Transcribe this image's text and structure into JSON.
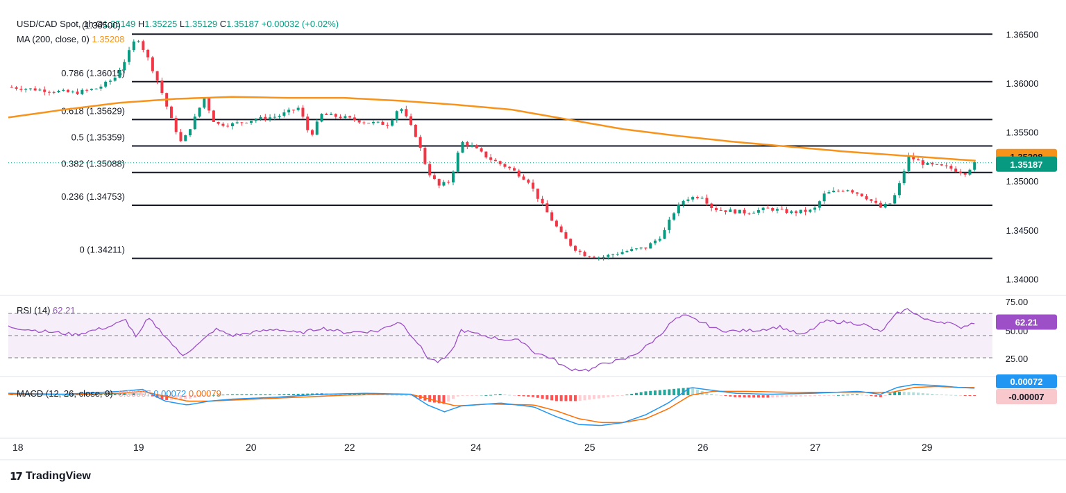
{
  "header": {
    "symbol": "USD/CAD Spot",
    "timeframe": "1h",
    "o_label": "O",
    "o_value": "1.35149",
    "h_label": "H",
    "h_value": "1.35225",
    "l_label": "L",
    "l_value": "1.35129",
    "c_label": "C",
    "c_value": "1.35187",
    "change": "+0.00032 (+0.02%)",
    "high_annotation": "(1.36500)"
  },
  "ma": {
    "label": "MA (200, close, 0)",
    "value": "1.35208",
    "color": "#f7931a"
  },
  "rsi": {
    "label": "RSI (14)",
    "value": "62.21",
    "color": "#9c4fc7",
    "ticks": [
      "75.00",
      "50.00",
      "25.00"
    ]
  },
  "macd": {
    "label": "MACD (12, 26, close, 9)",
    "hist_value": "-0.00007",
    "macd_value": "0.00072",
    "signal_value": "0.00079",
    "macd_color": "#2196f3",
    "signal_color": "#ff6d00"
  },
  "price_tags": {
    "ma": "1.35208",
    "last": "1.35187",
    "rsi": "62.21",
    "macd": "0.00072",
    "hist": "-0.00007"
  },
  "branding": {
    "name": "TradingView"
  },
  "colors": {
    "up": "#089981",
    "down": "#f23645",
    "fib": "#131722",
    "ma": "#f7931a"
  },
  "chart_data": {
    "type": "candlestick",
    "title": "USD/CAD Spot, 1h",
    "y_axis_ticks": [
      "1.36500",
      "1.36000",
      "1.35500",
      "1.35000",
      "1.34500",
      "1.34000"
    ],
    "x_axis_ticks": [
      "18",
      "19",
      "20",
      "22",
      "24",
      "25",
      "26",
      "27",
      "29"
    ],
    "fib_levels": [
      {
        "label": "1 (1.36500)",
        "value": 1.365
      },
      {
        "label": "0.786 (1.36015)",
        "value": 1.36015
      },
      {
        "label": "0.618 (1.35629)",
        "value": 1.35629
      },
      {
        "label": "0.5 (1.35359)",
        "value": 1.35359
      },
      {
        "label": "0.382 (1.35088)",
        "value": 1.35088
      },
      {
        "label": "0.236 (1.34753)",
        "value": 1.34753
      },
      {
        "label": "0 (1.34211)",
        "value": 1.34211
      }
    ],
    "last_price": 1.35187,
    "ma_path": [
      [
        0,
        1.3565
      ],
      [
        5,
        1.3573
      ],
      [
        10,
        1.358
      ],
      [
        15,
        1.3584
      ],
      [
        20,
        1.3586
      ],
      [
        25,
        1.3585
      ],
      [
        30,
        1.3585
      ],
      [
        35,
        1.3582
      ],
      [
        40,
        1.3578
      ],
      [
        45,
        1.3573
      ],
      [
        50,
        1.3563
      ],
      [
        55,
        1.3553
      ],
      [
        60,
        1.3546
      ],
      [
        65,
        1.354
      ],
      [
        70,
        1.3535
      ],
      [
        75,
        1.353
      ],
      [
        80,
        1.3526
      ],
      [
        85,
        1.3522
      ],
      [
        86.5,
        1.35208
      ]
    ],
    "price_path": [
      [
        0,
        1.3596
      ],
      [
        3,
        1.3593
      ],
      [
        6,
        1.359
      ],
      [
        8,
        1.3595
      ],
      [
        9.5,
        1.3605
      ],
      [
        10.5,
        1.3625
      ],
      [
        11.5,
        1.3648
      ],
      [
        12.5,
        1.3625
      ],
      [
        13.5,
        1.3598
      ],
      [
        14.5,
        1.3565
      ],
      [
        15.5,
        1.3538
      ],
      [
        16.5,
        1.356
      ],
      [
        17.5,
        1.3585
      ],
      [
        18.5,
        1.3558
      ],
      [
        20,
        1.3558
      ],
      [
        22,
        1.3563
      ],
      [
        24,
        1.3566
      ],
      [
        26,
        1.3575
      ],
      [
        27,
        1.3545
      ],
      [
        28,
        1.3568
      ],
      [
        30,
        1.3565
      ],
      [
        32,
        1.356
      ],
      [
        34,
        1.3558
      ],
      [
        35,
        1.3577
      ],
      [
        36.5,
        1.3545
      ],
      [
        37.5,
        1.351
      ],
      [
        38.5,
        1.3495
      ],
      [
        39.5,
        1.35
      ],
      [
        40.5,
        1.354
      ],
      [
        41.5,
        1.3535
      ],
      [
        43,
        1.3523
      ],
      [
        45,
        1.3512
      ],
      [
        46.5,
        1.35
      ],
      [
        47.5,
        1.348
      ],
      [
        48.5,
        1.3462
      ],
      [
        49.5,
        1.3445
      ],
      [
        50.5,
        1.3432
      ],
      [
        51.5,
        1.3425
      ],
      [
        53,
        1.3422
      ],
      [
        55,
        1.3428
      ],
      [
        57,
        1.3432
      ],
      [
        58.5,
        1.3445
      ],
      [
        59.5,
        1.3468
      ],
      [
        60.5,
        1.3482
      ],
      [
        62,
        1.3485
      ],
      [
        63,
        1.3472
      ],
      [
        64,
        1.347
      ],
      [
        66,
        1.3468
      ],
      [
        68,
        1.3472
      ],
      [
        70,
        1.3468
      ],
      [
        72,
        1.347
      ],
      [
        73,
        1.3487
      ],
      [
        75,
        1.3492
      ],
      [
        76.5,
        1.3485
      ],
      [
        78,
        1.3473
      ],
      [
        79,
        1.3478
      ],
      [
        79.8,
        1.35
      ],
      [
        80.5,
        1.3525
      ],
      [
        82,
        1.3517
      ],
      [
        84,
        1.3514
      ],
      [
        85.5,
        1.3508
      ],
      [
        86.5,
        1.35187
      ]
    ],
    "rsi_path": [
      [
        0,
        58
      ],
      [
        3,
        54
      ],
      [
        6,
        51
      ],
      [
        9,
        58
      ],
      [
        10.5,
        64
      ],
      [
        11.5,
        48
      ],
      [
        12.5,
        66
      ],
      [
        14,
        50
      ],
      [
        15.5,
        32
      ],
      [
        17,
        42
      ],
      [
        18.5,
        56
      ],
      [
        20,
        50
      ],
      [
        22,
        53
      ],
      [
        24,
        56
      ],
      [
        26,
        52
      ],
      [
        28,
        57
      ],
      [
        30,
        53
      ],
      [
        33,
        54
      ],
      [
        35,
        63
      ],
      [
        36.5,
        45
      ],
      [
        37.5,
        30
      ],
      [
        38.5,
        26
      ],
      [
        39.5,
        33
      ],
      [
        40.5,
        55
      ],
      [
        42,
        51
      ],
      [
        44,
        47
      ],
      [
        46,
        45
      ],
      [
        47,
        35
      ],
      [
        48.5,
        30
      ],
      [
        50,
        20
      ],
      [
        52,
        19
      ],
      [
        53.5,
        26
      ],
      [
        55,
        28
      ],
      [
        56.5,
        36
      ],
      [
        58,
        48
      ],
      [
        59.5,
        64
      ],
      [
        60.5,
        68
      ],
      [
        62,
        62
      ],
      [
        63.5,
        55
      ],
      [
        65,
        54
      ],
      [
        67,
        55
      ],
      [
        69,
        58
      ],
      [
        71,
        50
      ],
      [
        73,
        63
      ],
      [
        75,
        62
      ],
      [
        76.5,
        60
      ],
      [
        78,
        53
      ],
      [
        79.5,
        70
      ],
      [
        80.5,
        74
      ],
      [
        82,
        64
      ],
      [
        84,
        62
      ],
      [
        85,
        57
      ],
      [
        86.5,
        62.21
      ]
    ],
    "macd_path": [
      [
        0,
        0.0002
      ],
      [
        5,
        0.0001
      ],
      [
        10,
        0.0004
      ],
      [
        12,
        0.0006
      ],
      [
        14,
        -0.0006
      ],
      [
        16,
        -0.001
      ],
      [
        18,
        -0.0006
      ],
      [
        20,
        -0.0004
      ],
      [
        24,
        -0.0002
      ],
      [
        28,
        0.0001
      ],
      [
        32,
        0.0002
      ],
      [
        36,
        0.0001
      ],
      [
        37.5,
        -0.001
      ],
      [
        39,
        -0.0017
      ],
      [
        40.5,
        -0.0011
      ],
      [
        44,
        -0.0008
      ],
      [
        47,
        -0.0012
      ],
      [
        49,
        -0.0022
      ],
      [
        51,
        -0.003
      ],
      [
        53,
        -0.0031
      ],
      [
        55,
        -0.0028
      ],
      [
        57,
        -0.002
      ],
      [
        59,
        -0.0008
      ],
      [
        61,
        0.0008
      ],
      [
        63,
        0.0005
      ],
      [
        65,
        0.0002
      ],
      [
        68,
        0.0001
      ],
      [
        72,
        0.0002
      ],
      [
        76,
        0.0004
      ],
      [
        78,
        0.0001
      ],
      [
        79.5,
        0.0008
      ],
      [
        81,
        0.0011
      ],
      [
        83,
        0.001
      ],
      [
        85,
        0.0008
      ],
      [
        86.5,
        0.00072
      ]
    ],
    "signal_path": [
      [
        0,
        0.0001
      ],
      [
        6,
        0.0001
      ],
      [
        10,
        0.0002
      ],
      [
        12,
        0.0004
      ],
      [
        14,
        -0.0001
      ],
      [
        16,
        -0.0006
      ],
      [
        18,
        -0.0006
      ],
      [
        22,
        -0.0004
      ],
      [
        26,
        -0.0002
      ],
      [
        30,
        0.0
      ],
      [
        34,
        0.0001
      ],
      [
        36,
        0.0001
      ],
      [
        38,
        -0.0005
      ],
      [
        40,
        -0.0011
      ],
      [
        43,
        -0.0009
      ],
      [
        47,
        -0.001
      ],
      [
        49,
        -0.0016
      ],
      [
        51,
        -0.0024
      ],
      [
        53,
        -0.0028
      ],
      [
        55,
        -0.0028
      ],
      [
        57,
        -0.0024
      ],
      [
        59,
        -0.0014
      ],
      [
        61,
        0.0
      ],
      [
        63,
        0.0004
      ],
      [
        66,
        0.0004
      ],
      [
        70,
        0.0003
      ],
      [
        74,
        0.0003
      ],
      [
        77,
        0.0003
      ],
      [
        79,
        0.0003
      ],
      [
        81,
        0.0008
      ],
      [
        83,
        0.0009
      ],
      [
        85,
        0.0008
      ],
      [
        86.5,
        0.00079
      ]
    ]
  }
}
